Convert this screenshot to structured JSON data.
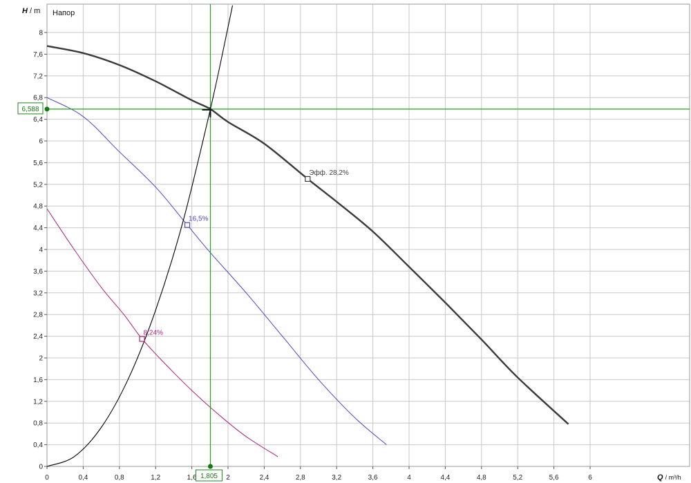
{
  "chart_data": {
    "type": "line",
    "title": "Напор",
    "xlabel": {
      "symbol": "Q",
      "unit": "/ m³/h"
    },
    "ylabel": {
      "symbol": "H",
      "unit": "/ m"
    },
    "xlim": [
      0,
      6.2
    ],
    "ylim": [
      0,
      8.4
    ],
    "x_ticks": [
      "0",
      "0,4",
      "0,8",
      "1,2",
      "1,6",
      "2",
      "2,4",
      "2,8",
      "3,2",
      "3,6",
      "4",
      "4,4",
      "4,8",
      "5,2",
      "5,6",
      "6"
    ],
    "y_ticks": [
      "0",
      "0,4",
      "0,8",
      "1,2",
      "1,6",
      "2",
      "2,4",
      "2,8",
      "3,2",
      "3,6",
      "4",
      "4,4",
      "4,8",
      "5,2",
      "5,6",
      "6",
      "6,4",
      "6,8",
      "7,2",
      "7,6",
      "8"
    ],
    "grid": true,
    "colors": {
      "main": "#3a3a3a",
      "mid": "#4a46c8",
      "low": "#b0207a",
      "system": "#000000",
      "cursor": "#1ea51e",
      "grid": "#c8c8c8"
    },
    "series": [
      {
        "key": "main",
        "x": [
          0,
          0.4,
          0.8,
          1.2,
          1.6,
          1.805,
          2.0,
          2.4,
          2.88,
          3.2,
          3.6,
          4.0,
          4.4,
          4.8,
          5.2,
          5.76
        ],
        "y": [
          7.75,
          7.62,
          7.4,
          7.1,
          6.75,
          6.588,
          6.35,
          5.95,
          5.3,
          4.88,
          4.33,
          3.68,
          3.02,
          2.34,
          1.64,
          0.78
        ]
      },
      {
        "key": "mid",
        "x": [
          0,
          0.4,
          0.8,
          1.2,
          1.55,
          1.8,
          2.2,
          2.6,
          3.0,
          3.4,
          3.75
        ],
        "y": [
          6.8,
          6.45,
          5.8,
          5.15,
          4.45,
          3.95,
          3.2,
          2.4,
          1.6,
          0.9,
          0.4
        ]
      },
      {
        "key": "low",
        "x": [
          0,
          0.3,
          0.6,
          0.85,
          1.05,
          1.3,
          1.6,
          1.9,
          2.2,
          2.55
        ],
        "y": [
          4.75,
          4.0,
          3.3,
          2.8,
          2.35,
          1.9,
          1.4,
          0.95,
          0.55,
          0.18
        ]
      },
      {
        "key": "system",
        "x": [
          0,
          0.3,
          0.6,
          0.9,
          1.2,
          1.5,
          1.805,
          2.0,
          2.05
        ],
        "y": [
          0,
          0.18,
          0.72,
          1.62,
          2.88,
          4.5,
          6.588,
          8.1,
          8.5
        ]
      }
    ],
    "markers": [
      {
        "series": "main",
        "x": 2.88,
        "y": 5.3,
        "label": "Эфф.  28,2%"
      },
      {
        "series": "mid",
        "x": 1.55,
        "y": 4.45,
        "label": "16,5%"
      },
      {
        "series": "low",
        "x": 1.05,
        "y": 2.35,
        "label": "8,24%"
      }
    ],
    "cursor": {
      "x": 1.805,
      "y": 6.588,
      "x_label": "1,805",
      "y_label": "6,588"
    }
  }
}
